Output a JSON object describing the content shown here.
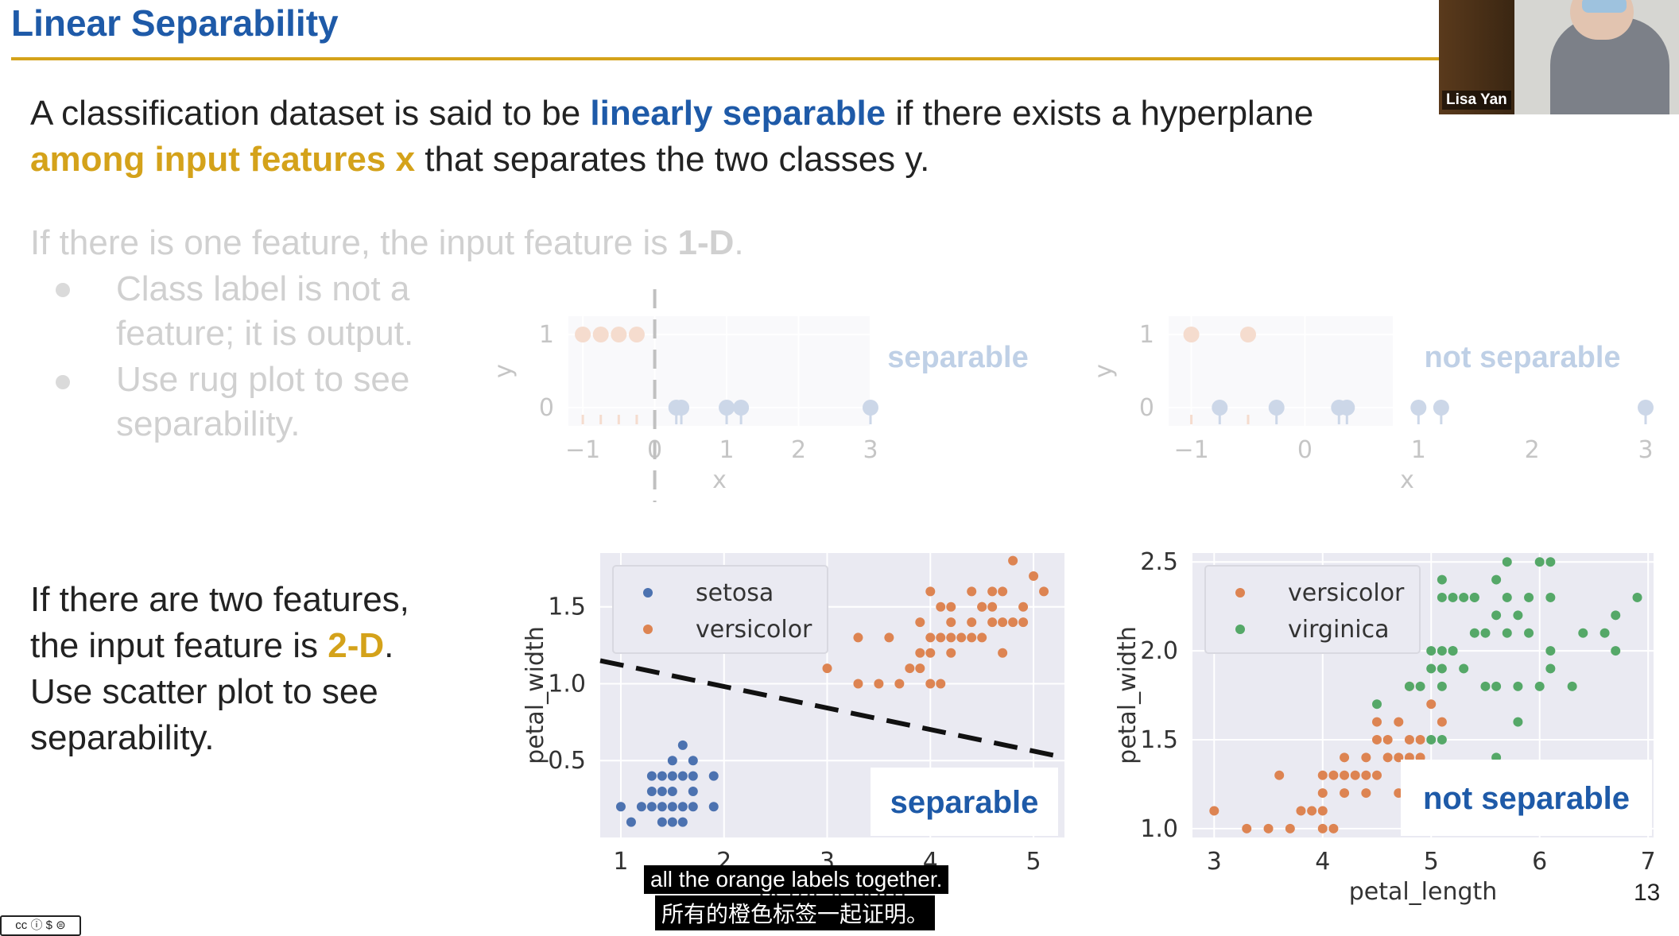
{
  "slide": {
    "title": "Linear Separability",
    "intro": {
      "line1_a": "A classification dataset is said to be ",
      "line1_b": "linearly separable",
      "line1_c": " if there exists a hyperplane",
      "line2_a": "among input features x",
      "line2_b": " that separates the two classes y."
    },
    "one_d": {
      "text_a": "If there is one feature, the input feature is ",
      "text_b": "1-D",
      "text_c": ".",
      "bullets": [
        {
          "line1": "Class label is not a",
          "line2": "feature; it is output."
        },
        {
          "line1": "Use rug plot to see",
          "line2": "separability."
        }
      ]
    },
    "two_d": {
      "line1": "If there are two features,",
      "line2_a": "the input feature is ",
      "line2_b": "2-D",
      "line2_c": ".",
      "line3": "Use scatter plot to see",
      "line4": "separability."
    },
    "page_number": "13"
  },
  "video": {
    "participant_name": "Lisa Yan"
  },
  "subtitles": {
    "english": "all the orange labels together.",
    "chinese": "所有的橙色标签一起证明。"
  },
  "license_badge": "cc ⓘ $ ⊜",
  "colors": {
    "title_blue": "#1e5aa8",
    "accent_gold": "#d4a21a",
    "orange": "#dd8452",
    "blue": "#4c72b0",
    "green": "#55a868",
    "plot_bg": "#eaeaf2"
  },
  "chart_data": [
    {
      "type": "scatter",
      "name": "rug_separable",
      "overlay_label": "separable",
      "xlabel": "x",
      "ylabel": "y",
      "xlim": [
        -1.2,
        3.0
      ],
      "ylim": [
        -0.25,
        1.25
      ],
      "xticks": [
        "−1",
        "0",
        "1",
        "2",
        "3"
      ],
      "yticks": [
        "0",
        "1"
      ],
      "threshold_x": 0,
      "series": [
        {
          "color": "orange",
          "points": [
            [
              -1.0,
              1
            ],
            [
              -0.75,
              1
            ],
            [
              -0.5,
              1
            ],
            [
              -0.25,
              1
            ]
          ]
        },
        {
          "color": "blue",
          "points": [
            [
              0.3,
              0
            ],
            [
              0.37,
              0
            ],
            [
              1.0,
              0
            ],
            [
              1.2,
              0
            ],
            [
              3.0,
              0
            ]
          ]
        }
      ]
    },
    {
      "type": "scatter",
      "name": "rug_not_separable",
      "overlay_label": "not separable",
      "xlabel": "x",
      "ylabel": "y",
      "xlim": [
        -1.2,
        3.0
      ],
      "ylim": [
        -0.25,
        1.25
      ],
      "xticks": [
        "−1",
        "0",
        "1",
        "2",
        "3"
      ],
      "yticks": [
        "0",
        "1"
      ],
      "series": [
        {
          "color": "orange",
          "points": [
            [
              -1.0,
              1
            ],
            [
              -0.5,
              1
            ]
          ]
        },
        {
          "color": "blue",
          "points": [
            [
              -0.75,
              0
            ],
            [
              -0.25,
              0
            ],
            [
              0.3,
              0
            ],
            [
              0.37,
              0
            ],
            [
              1.0,
              0
            ],
            [
              1.2,
              0
            ],
            [
              3.0,
              0
            ]
          ]
        }
      ]
    },
    {
      "type": "scatter",
      "name": "iris_separable",
      "overlay_label": "separable",
      "xlabel": "petal_length",
      "ylabel": "petal_width",
      "xlim": [
        0.8,
        5.3
      ],
      "ylim": [
        0.0,
        1.85
      ],
      "xticks": [
        "1",
        "2",
        "3",
        "4",
        "5"
      ],
      "yticks": [
        "0.5",
        "1.0",
        "1.5"
      ],
      "legend": [
        "setosa",
        "versicolor"
      ],
      "separator": [
        [
          0.8,
          1.15
        ],
        [
          5.3,
          0.52
        ]
      ],
      "series": [
        {
          "name": "setosa",
          "color": "blue",
          "points": [
            [
              1.0,
              0.2
            ],
            [
              1.1,
              0.1
            ],
            [
              1.2,
              0.2
            ],
            [
              1.3,
              0.2
            ],
            [
              1.3,
              0.3
            ],
            [
              1.4,
              0.2
            ],
            [
              1.4,
              0.3
            ],
            [
              1.4,
              0.1
            ],
            [
              1.5,
              0.2
            ],
            [
              1.5,
              0.4
            ],
            [
              1.5,
              0.3
            ],
            [
              1.6,
              0.2
            ],
            [
              1.6,
              0.6
            ],
            [
              1.6,
              0.4
            ],
            [
              1.7,
              0.4
            ],
            [
              1.7,
              0.3
            ],
            [
              1.7,
              0.5
            ],
            [
              1.9,
              0.2
            ],
            [
              1.9,
              0.4
            ],
            [
              1.5,
              0.1
            ],
            [
              1.6,
              0.1
            ],
            [
              1.4,
              0.4
            ],
            [
              1.3,
              0.4
            ],
            [
              1.7,
              0.2
            ],
            [
              1.5,
              0.5
            ]
          ]
        },
        {
          "name": "versicolor",
          "color": "orange",
          "points": [
            [
              3.0,
              1.1
            ],
            [
              3.3,
              1.0
            ],
            [
              3.5,
              1.0
            ],
            [
              3.7,
              1.0
            ],
            [
              3.6,
              1.3
            ],
            [
              3.8,
              1.1
            ],
            [
              3.9,
              1.1
            ],
            [
              3.9,
              1.2
            ],
            [
              3.9,
              1.4
            ],
            [
              4.0,
              1.0
            ],
            [
              4.0,
              1.2
            ],
            [
              4.0,
              1.3
            ],
            [
              4.1,
              1.0
            ],
            [
              4.1,
              1.3
            ],
            [
              4.2,
              1.2
            ],
            [
              4.2,
              1.3
            ],
            [
              4.2,
              1.5
            ],
            [
              4.3,
              1.3
            ],
            [
              4.4,
              1.3
            ],
            [
              4.4,
              1.4
            ],
            [
              4.5,
              1.3
            ],
            [
              4.5,
              1.5
            ],
            [
              4.6,
              1.4
            ],
            [
              4.6,
              1.5
            ],
            [
              4.7,
              1.2
            ],
            [
              4.7,
              1.4
            ],
            [
              4.8,
              1.4
            ],
            [
              4.8,
              1.8
            ],
            [
              4.9,
              1.5
            ],
            [
              5.0,
              1.7
            ],
            [
              5.1,
              1.6
            ],
            [
              4.4,
              1.6
            ],
            [
              4.5,
              1.5
            ],
            [
              4.1,
              1.5
            ],
            [
              4.0,
              1.6
            ],
            [
              4.6,
              1.6
            ],
            [
              4.2,
              1.4
            ],
            [
              3.3,
              1.3
            ],
            [
              4.9,
              1.4
            ],
            [
              4.7,
              1.6
            ]
          ]
        }
      ]
    },
    {
      "type": "scatter",
      "name": "iris_not_separable",
      "overlay_label": "not separable",
      "xlabel": "petal_length",
      "ylabel": "petal_width",
      "xlim": [
        2.8,
        7.05
      ],
      "ylim": [
        0.95,
        2.55
      ],
      "xticks": [
        "3",
        "4",
        "5",
        "6",
        "7"
      ],
      "yticks": [
        "1.0",
        "1.5",
        "2.0",
        "2.5"
      ],
      "legend": [
        "versicolor",
        "virginica"
      ],
      "series": [
        {
          "name": "versicolor",
          "color": "orange",
          "points": [
            [
              3.0,
              1.1
            ],
            [
              3.3,
              1.0
            ],
            [
              3.5,
              1.0
            ],
            [
              3.7,
              1.0
            ],
            [
              3.9,
              1.1
            ],
            [
              3.6,
              1.3
            ],
            [
              3.8,
              1.1
            ],
            [
              4.0,
              1.0
            ],
            [
              4.0,
              1.2
            ],
            [
              4.0,
              1.3
            ],
            [
              4.1,
              1.0
            ],
            [
              4.1,
              1.3
            ],
            [
              4.2,
              1.2
            ],
            [
              4.2,
              1.3
            ],
            [
              4.3,
              1.3
            ],
            [
              4.4,
              1.3
            ],
            [
              4.4,
              1.4
            ],
            [
              4.5,
              1.3
            ],
            [
              4.5,
              1.5
            ],
            [
              4.6,
              1.4
            ],
            [
              4.7,
              1.2
            ],
            [
              4.7,
              1.4
            ],
            [
              4.8,
              1.4
            ],
            [
              4.8,
              1.8
            ],
            [
              4.9,
              1.5
            ],
            [
              5.0,
              1.7
            ],
            [
              5.1,
              1.6
            ],
            [
              4.7,
              1.6
            ],
            [
              4.6,
              1.5
            ],
            [
              4.5,
              1.6
            ],
            [
              4.2,
              1.4
            ],
            [
              4.9,
              1.4
            ],
            [
              4.4,
              1.2
            ],
            [
              4.0,
              1.1
            ],
            [
              4.8,
              1.5
            ]
          ]
        },
        {
          "name": "virginica",
          "color": "green",
          "points": [
            [
              4.5,
              1.7
            ],
            [
              4.8,
              1.8
            ],
            [
              4.9,
              1.8
            ],
            [
              5.0,
              1.5
            ],
            [
              5.0,
              2.0
            ],
            [
              5.0,
              1.9
            ],
            [
              5.1,
              1.5
            ],
            [
              5.1,
              1.9
            ],
            [
              5.1,
              2.0
            ],
            [
              5.1,
              2.3
            ],
            [
              5.1,
              1.8
            ],
            [
              5.1,
              2.4
            ],
            [
              5.2,
              2.0
            ],
            [
              5.2,
              2.3
            ],
            [
              5.3,
              1.9
            ],
            [
              5.3,
              2.3
            ],
            [
              5.4,
              2.1
            ],
            [
              5.4,
              2.3
            ],
            [
              5.5,
              2.1
            ],
            [
              5.5,
              1.8
            ],
            [
              5.6,
              1.4
            ],
            [
              5.6,
              2.4
            ],
            [
              5.6,
              1.8
            ],
            [
              5.6,
              2.2
            ],
            [
              5.7,
              2.1
            ],
            [
              5.7,
              2.3
            ],
            [
              5.8,
              1.6
            ],
            [
              5.8,
              2.2
            ],
            [
              5.9,
              2.1
            ],
            [
              6.0,
              1.8
            ],
            [
              6.0,
              2.5
            ],
            [
              6.1,
              2.0
            ],
            [
              6.1,
              2.3
            ],
            [
              6.1,
              1.9
            ],
            [
              6.3,
              1.8
            ],
            [
              6.4,
              2.1
            ],
            [
              6.6,
              2.1
            ],
            [
              6.7,
              2.0
            ],
            [
              6.7,
              2.2
            ],
            [
              6.9,
              2.3
            ],
            [
              5.8,
              1.8
            ],
            [
              5.9,
              2.3
            ],
            [
              5.2,
              2.0
            ],
            [
              5.4,
              2.3
            ],
            [
              5.7,
              2.5
            ],
            [
              6.1,
              2.5
            ]
          ]
        }
      ]
    }
  ]
}
